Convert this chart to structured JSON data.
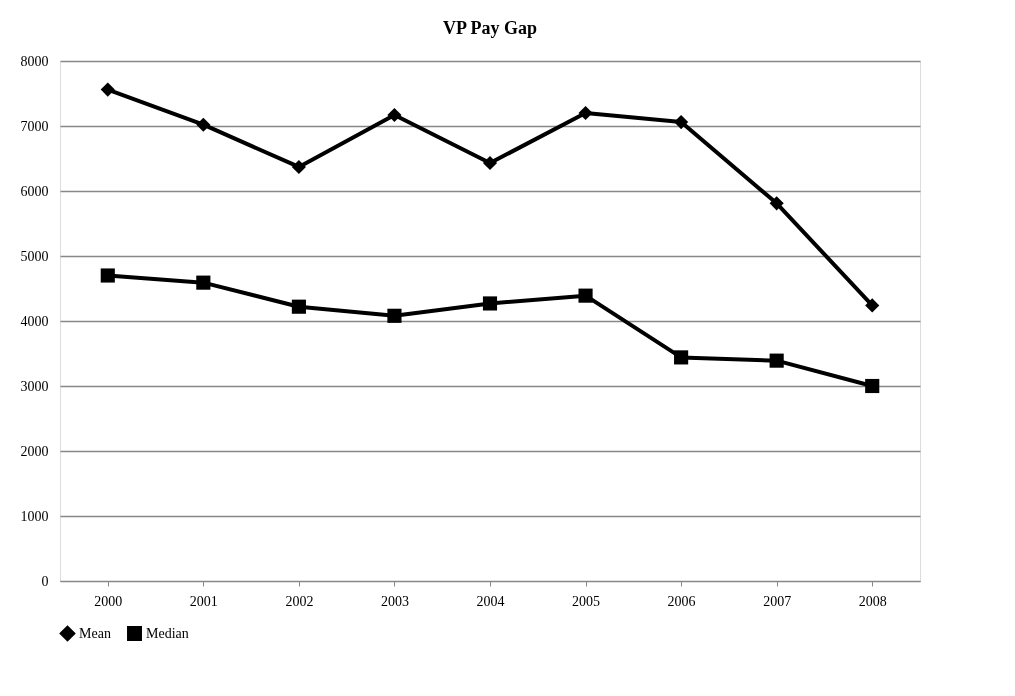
{
  "chart_data": {
    "type": "line",
    "title": "VP Pay Gap",
    "categories": [
      "2000",
      "2001",
      "2002",
      "2003",
      "2004",
      "2005",
      "2006",
      "2007",
      "2008"
    ],
    "series": [
      {
        "name": "Mean",
        "color": "#000000",
        "marker": "diamond",
        "values": [
          7560,
          7020,
          6370,
          7170,
          6430,
          7200,
          7060,
          5810,
          4240
        ]
      },
      {
        "name": "Median",
        "color": "#000000",
        "marker": "square",
        "values": [
          4700,
          4590,
          4220,
          4080,
          4270,
          4390,
          3440,
          3390,
          3000
        ]
      }
    ],
    "ylim": [
      0,
      8000
    ],
    "yticks": [
      0,
      1000,
      2000,
      3000,
      4000,
      5000,
      6000,
      7000,
      8000
    ],
    "grid": "y",
    "legend": "bottom",
    "line_style": "solid"
  }
}
